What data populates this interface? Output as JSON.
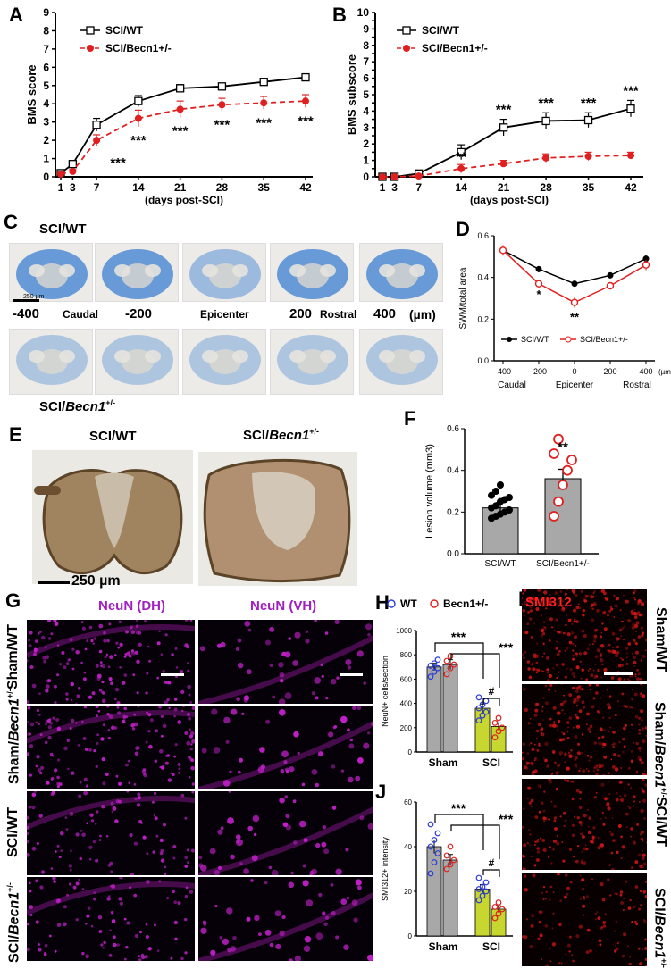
{
  "panels": {
    "A": "A",
    "B": "B",
    "C": "C",
    "D": "D",
    "E": "E",
    "F": "F",
    "G": "G",
    "H": "H",
    "I": "I",
    "J": "J"
  },
  "labels": {
    "sci_wt": "SCI/WT",
    "sci_becn": "SCI/Becn1+/-",
    "sham_wt": "Sham/WT",
    "sham_becn": "Sham/Becn1+/-",
    "c_positions": [
      "-400",
      "Caudal",
      "-200",
      "Epicenter",
      "200",
      "Rostral",
      "400",
      "(µm)"
    ],
    "c_scalebar": "250 µm",
    "e_scalebar": "250 µm",
    "g_col1": "NeuN (DH)",
    "g_col2": "NeuN (VH)",
    "i_stain": "SMI312"
  },
  "colors": {
    "wt": "#000000",
    "becn": "#e02020",
    "gray_bar": "#a8a8a8",
    "sci_bar": "#c8d630",
    "neun": "#c020c8",
    "smi": "#e01818",
    "luxol": "#3b7fd0"
  },
  "chart_data": [
    {
      "id": "A",
      "type": "line",
      "ylabel": "BMS score",
      "xlabel": "(days post-SCI)",
      "x": [
        1,
        3,
        7,
        14,
        21,
        28,
        35,
        42
      ],
      "ylim": [
        0,
        9
      ],
      "yticks": [
        0,
        1,
        2,
        3,
        4,
        5,
        6,
        7,
        8,
        9
      ],
      "series": [
        {
          "name": "SCI/WT",
          "values": [
            0.2,
            0.7,
            2.85,
            4.15,
            4.85,
            4.95,
            5.2,
            5.45
          ],
          "err": [
            0.05,
            0.15,
            0.35,
            0.3,
            0.2,
            0.15,
            0.15,
            0.15
          ]
        },
        {
          "name": "SCI/Becn1+/-",
          "values": [
            0.15,
            0.3,
            2.0,
            3.2,
            3.7,
            3.95,
            4.05,
            4.15
          ],
          "err": [
            0.05,
            0.1,
            0.3,
            0.45,
            0.45,
            0.35,
            0.35,
            0.35
          ]
        }
      ],
      "annotations": [
        {
          "x": 7,
          "text": "***"
        },
        {
          "x": 14,
          "text": "***"
        },
        {
          "x": 21,
          "text": "***"
        },
        {
          "x": 28,
          "text": "***"
        },
        {
          "x": 35,
          "text": "***"
        },
        {
          "x": 42,
          "text": "***"
        }
      ]
    },
    {
      "id": "B",
      "type": "line",
      "ylabel": "BMS subscore",
      "xlabel": "(days post-SCI)",
      "x": [
        1,
        3,
        7,
        14,
        21,
        28,
        35,
        42
      ],
      "ylim": [
        0,
        10
      ],
      "yticks": [
        0,
        0.5,
        1,
        1.5,
        2,
        2.5,
        3,
        3.5,
        4,
        4.5,
        5,
        5.5,
        6,
        6.5,
        7,
        7.5,
        8,
        8.5,
        9,
        9.5,
        10
      ],
      "series": [
        {
          "name": "SCI/WT",
          "values": [
            0,
            0,
            0.2,
            1.5,
            3.0,
            3.4,
            3.45,
            4.15
          ],
          "err": [
            0,
            0,
            0.1,
            0.45,
            0.5,
            0.5,
            0.45,
            0.5
          ]
        },
        {
          "name": "SCI/Becn1+/-",
          "values": [
            0,
            0,
            0.05,
            0.5,
            0.8,
            1.15,
            1.25,
            1.3
          ],
          "err": [
            0,
            0,
            0.05,
            0.25,
            0.2,
            0.25,
            0.25,
            0.2
          ]
        }
      ],
      "annotations": [
        {
          "x": 14,
          "text": "**"
        },
        {
          "x": 21,
          "text": "***"
        },
        {
          "x": 28,
          "text": "***"
        },
        {
          "x": 35,
          "text": "***"
        },
        {
          "x": 42,
          "text": "***"
        }
      ]
    },
    {
      "id": "D",
      "type": "line",
      "ylabel": "SWM/total area",
      "xlabel_parts": [
        "Caudal",
        "Epicenter",
        "Rostral"
      ],
      "x": [
        -400,
        -200,
        0,
        200,
        400
      ],
      "x_unit": "(µm)",
      "ylim": [
        0,
        0.6
      ],
      "yticks": [
        0.0,
        0.2,
        0.4,
        0.6
      ],
      "series": [
        {
          "name": "SCI/WT",
          "values": [
            0.53,
            0.44,
            0.37,
            0.41,
            0.49
          ],
          "err": [
            0.025,
            0.015,
            0.01,
            0.015,
            0.02
          ]
        },
        {
          "name": "SCI/Becn1+/-",
          "values": [
            0.53,
            0.37,
            0.28,
            0.36,
            0.46
          ],
          "err": [
            0.025,
            0.02,
            0.025,
            0.015,
            0.025
          ]
        }
      ],
      "annotations": [
        {
          "x": -200,
          "text": "*"
        },
        {
          "x": 0,
          "text": "**"
        }
      ]
    },
    {
      "id": "F",
      "type": "bar",
      "ylabel": "Lesion volume (mm3)",
      "categories": [
        "SCI/WT",
        "SCI/Becn1+/-"
      ],
      "values": [
        0.22,
        0.36
      ],
      "err": [
        0.025,
        0.045
      ],
      "ylim": [
        0,
        0.6
      ],
      "yticks": [
        0.0,
        0.2,
        0.4,
        0.6
      ],
      "points": [
        [
          0.17,
          0.18,
          0.19,
          0.2,
          0.21,
          0.22,
          0.23,
          0.25,
          0.26,
          0.27,
          0.28,
          0.3,
          0.33
        ],
        [
          0.18,
          0.25,
          0.33,
          0.4,
          0.45,
          0.48,
          0.55
        ]
      ],
      "annotations": [
        {
          "category": "SCI/Becn1+/-",
          "text": "**"
        }
      ]
    },
    {
      "id": "H",
      "type": "bar",
      "ylabel": "NeuN+ cells/section",
      "groups": [
        "Sham",
        "SCI"
      ],
      "legend": [
        "WT",
        "Becn1+/-"
      ],
      "values": [
        [
          700,
          720
        ],
        [
          360,
          210
        ]
      ],
      "err": [
        [
          30,
          40
        ],
        [
          35,
          30
        ]
      ],
      "ylim": [
        0,
        1000
      ],
      "yticks": [
        0,
        200,
        400,
        600,
        800,
        1000
      ],
      "points": [
        [
          [
            620,
            660,
            690,
            710,
            730,
            760
          ],
          [
            640,
            690,
            720,
            750,
            790
          ]
        ],
        [
          [
            260,
            300,
            330,
            360,
            390,
            420,
            450
          ],
          [
            120,
            170,
            200,
            240,
            280
          ]
        ]
      ],
      "annotations": [
        "***",
        "***",
        "#"
      ]
    },
    {
      "id": "J",
      "type": "bar",
      "ylabel": "SMI312+ intensity",
      "groups": [
        "Sham",
        "SCI"
      ],
      "values": [
        [
          40,
          34
        ],
        [
          21,
          12
        ]
      ],
      "err": [
        [
          3,
          2.5
        ],
        [
          2,
          1.5
        ]
      ],
      "ylim": [
        0,
        60
      ],
      "yticks": [
        0,
        20,
        40,
        60
      ],
      "points": [
        [
          [
            28,
            33,
            37,
            40,
            43,
            46,
            50
          ],
          [
            30,
            32,
            34,
            36,
            40
          ]
        ],
        [
          [
            16,
            18,
            20,
            21,
            22,
            24,
            26
          ],
          [
            8,
            10,
            12,
            13,
            15
          ]
        ]
      ],
      "annotations": [
        "***",
        "***",
        "#"
      ]
    }
  ]
}
